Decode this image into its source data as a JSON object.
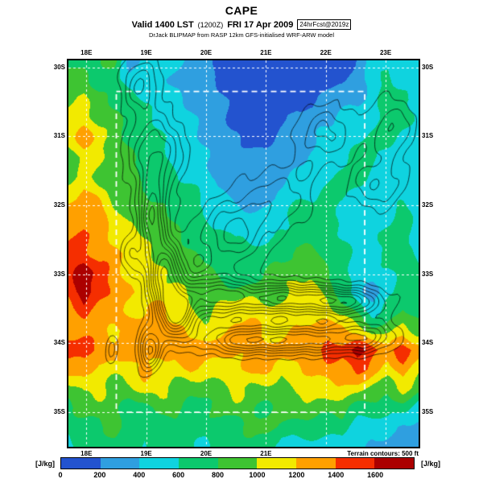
{
  "header": {
    "title": "CAPE",
    "valid": "Valid 1400 LST",
    "zulu": "(1200Z)",
    "date": "FRI 17 Apr 2009",
    "badge": "24hrFcst@2019z",
    "model": "DrJack BLIPMAP from RASP 12km GFS-initialised WRF-ARW model"
  },
  "map": {
    "lon_labels": [
      "18E",
      "19E",
      "20E",
      "21E",
      "22E",
      "23E"
    ],
    "lon_labels_bottom": [
      "18E",
      "19E",
      "20E",
      "21E"
    ],
    "lat_labels_left": [
      "30S",
      "31S",
      "32S",
      "33S",
      "34S",
      "35S"
    ],
    "lat_labels_right": [
      "30S",
      "31S",
      "32S",
      "33S",
      "34S",
      "35S"
    ],
    "terrain_note": "Terrain contours: 500 ft"
  },
  "colorbar": {
    "units_left": "[J/kg]",
    "units_right": "[J/kg]",
    "ticks": [
      "0",
      "200",
      "400",
      "600",
      "800",
      "1000",
      "1200",
      "1400",
      "1600"
    ]
  },
  "chart_data": {
    "type": "heatmap",
    "subtype": "filled-contour-weather-map",
    "title": "CAPE",
    "subtitle": "Valid 1400 LST (1200Z) FRI 17 Apr 2009 [24hrFcst@2019z]",
    "source_line": "DrJack BLIPMAP from RASP 12km GFS-initialised WRF-ARW model",
    "units": "J/kg",
    "lon_range": [
      17.7,
      23.55
    ],
    "lat_range": [
      29.9,
      35.5
    ],
    "levels": [
      0,
      200,
      400,
      600,
      800,
      1000,
      1200,
      1400,
      1600
    ],
    "level_colors": [
      "#2353cf",
      "#2f9fe0",
      "#0fd3df",
      "#0cc96d",
      "#3ec432",
      "#f2ea00",
      "#ffa000",
      "#f52e00",
      "#ab0000"
    ],
    "graticule": {
      "lons": [
        18,
        19,
        20,
        21,
        22,
        23
      ],
      "lats": [
        30,
        31,
        32,
        33,
        34,
        35
      ]
    },
    "inner_domain_box": {
      "lon": [
        18.5,
        22.65
      ],
      "lat": [
        30.35,
        35.0
      ]
    },
    "grid_lon_count": 24,
    "grid_lat_count": 21,
    "cape_grid": [
      [
        700,
        700,
        700,
        900,
        300,
        500,
        500,
        500,
        300,
        300,
        100,
        100,
        100,
        100,
        100,
        100,
        100,
        100,
        100,
        300,
        500,
        500,
        500,
        500
      ],
      [
        900,
        900,
        700,
        700,
        500,
        500,
        500,
        300,
        300,
        300,
        100,
        100,
        100,
        100,
        100,
        100,
        100,
        100,
        100,
        300,
        500,
        700,
        500,
        500
      ],
      [
        900,
        1100,
        900,
        700,
        700,
        500,
        500,
        500,
        300,
        300,
        300,
        100,
        100,
        100,
        100,
        100,
        100,
        300,
        300,
        300,
        500,
        700,
        700,
        500
      ],
      [
        1100,
        1100,
        900,
        900,
        700,
        700,
        500,
        500,
        500,
        300,
        300,
        100,
        100,
        100,
        100,
        300,
        300,
        300,
        500,
        500,
        500,
        700,
        700,
        500
      ],
      [
        1100,
        1300,
        1100,
        900,
        700,
        700,
        700,
        500,
        500,
        300,
        300,
        300,
        100,
        100,
        300,
        300,
        300,
        500,
        500,
        500,
        700,
        700,
        500,
        500
      ],
      [
        900,
        1100,
        1100,
        900,
        900,
        700,
        700,
        500,
        500,
        500,
        300,
        300,
        300,
        300,
        300,
        300,
        500,
        500,
        500,
        700,
        700,
        500,
        500,
        500
      ],
      [
        900,
        1100,
        900,
        900,
        900,
        700,
        700,
        700,
        500,
        500,
        300,
        300,
        300,
        300,
        300,
        500,
        500,
        500,
        700,
        700,
        500,
        500,
        500,
        500
      ],
      [
        1100,
        1300,
        1100,
        900,
        900,
        900,
        700,
        700,
        700,
        500,
        500,
        300,
        300,
        300,
        500,
        500,
        500,
        700,
        700,
        500,
        500,
        500,
        500,
        500
      ],
      [
        1300,
        1300,
        1300,
        1100,
        900,
        900,
        900,
        700,
        700,
        500,
        500,
        500,
        500,
        500,
        500,
        700,
        700,
        700,
        500,
        500,
        500,
        500,
        700,
        500
      ],
      [
        1300,
        1500,
        1300,
        1100,
        1100,
        900,
        900,
        900,
        700,
        700,
        700,
        500,
        500,
        500,
        700,
        700,
        700,
        700,
        500,
        500,
        500,
        700,
        700,
        500
      ],
      [
        1500,
        1500,
        1300,
        1300,
        1100,
        1100,
        900,
        900,
        900,
        700,
        700,
        700,
        700,
        700,
        700,
        900,
        900,
        700,
        700,
        500,
        500,
        700,
        700,
        500
      ],
      [
        1500,
        1700,
        1500,
        1300,
        1100,
        1100,
        1100,
        900,
        900,
        900,
        700,
        700,
        700,
        900,
        900,
        900,
        900,
        900,
        700,
        500,
        500,
        500,
        700,
        700
      ],
      [
        1500,
        1700,
        1500,
        1300,
        1300,
        1100,
        1100,
        1100,
        900,
        900,
        900,
        900,
        900,
        900,
        900,
        1100,
        1100,
        900,
        700,
        500,
        300,
        500,
        700,
        700
      ],
      [
        1300,
        1500,
        1300,
        1300,
        1100,
        1100,
        1300,
        1100,
        1100,
        900,
        1100,
        1100,
        1100,
        1100,
        1100,
        1100,
        1100,
        1100,
        900,
        700,
        500,
        700,
        900,
        700
      ],
      [
        1300,
        1300,
        1300,
        1100,
        1300,
        1300,
        1300,
        1300,
        1100,
        1100,
        1100,
        1300,
        1300,
        1100,
        1100,
        1300,
        1300,
        1300,
        1300,
        1100,
        900,
        900,
        1100,
        900
      ],
      [
        1500,
        1500,
        1300,
        1300,
        1300,
        1300,
        1300,
        1300,
        1300,
        1300,
        1300,
        1300,
        1300,
        1300,
        1300,
        1300,
        1300,
        1500,
        1500,
        1700,
        1500,
        1300,
        1500,
        1300
      ],
      [
        1300,
        1300,
        1100,
        1100,
        1100,
        1300,
        1100,
        1100,
        1300,
        1100,
        1100,
        1100,
        1300,
        1300,
        1100,
        1100,
        1300,
        1300,
        1300,
        1500,
        1300,
        1100,
        1300,
        1100
      ],
      [
        900,
        1100,
        1100,
        900,
        900,
        1100,
        1100,
        900,
        900,
        900,
        900,
        1100,
        900,
        900,
        900,
        1100,
        1100,
        1100,
        1100,
        1100,
        900,
        900,
        1100,
        900
      ],
      [
        700,
        900,
        900,
        900,
        700,
        700,
        900,
        900,
        700,
        700,
        900,
        900,
        900,
        700,
        900,
        900,
        900,
        900,
        900,
        700,
        700,
        700,
        700,
        500
      ],
      [
        700,
        700,
        700,
        900,
        700,
        700,
        700,
        700,
        700,
        700,
        700,
        700,
        900,
        900,
        700,
        700,
        700,
        700,
        700,
        500,
        500,
        500,
        300,
        300
      ],
      [
        500,
        700,
        700,
        700,
        700,
        500,
        700,
        700,
        700,
        500,
        700,
        700,
        700,
        700,
        500,
        500,
        500,
        500,
        500,
        500,
        300,
        300,
        300,
        300
      ]
    ],
    "terrain_contours": {
      "interval_ft": 500,
      "label": "Terrain contours: 500 ft",
      "levels_ft": [
        500,
        1000,
        1500,
        2000,
        2500,
        3000,
        3500,
        4000,
        4500
      ],
      "ridges": [
        [
          18.9,
          30.25,
          2000,
          0.3,
          0.4
        ],
        [
          19.15,
          31.25,
          2600,
          0.45,
          0.55
        ],
        [
          19.1,
          32.15,
          3400,
          0.22,
          0.5
        ],
        [
          19.3,
          32.95,
          4200,
          0.28,
          0.45
        ],
        [
          19.5,
          33.55,
          4800,
          0.32,
          0.38
        ],
        [
          19.05,
          34.1,
          3000,
          0.18,
          0.3
        ],
        [
          18.42,
          34.1,
          1100,
          0.1,
          0.25
        ],
        [
          18.75,
          32.7,
          1400,
          0.18,
          0.28
        ],
        [
          20.15,
          33.3,
          3200,
          0.5,
          0.3
        ],
        [
          20.45,
          32.4,
          2200,
          0.55,
          0.45
        ],
        [
          21.25,
          33.35,
          3800,
          0.85,
          0.22
        ],
        [
          22.35,
          33.4,
          3300,
          0.6,
          0.2
        ],
        [
          20.65,
          33.95,
          3200,
          0.7,
          0.2
        ],
        [
          21.7,
          33.95,
          3000,
          0.7,
          0.2
        ],
        [
          22.65,
          33.9,
          2600,
          0.5,
          0.22
        ],
        [
          22.0,
          30.95,
          1600,
          0.5,
          0.4
        ],
        [
          22.85,
          31.7,
          1500,
          0.45,
          0.35
        ],
        [
          21.2,
          31.9,
          1300,
          0.6,
          0.45
        ],
        [
          23.1,
          30.9,
          1500,
          0.4,
          0.45
        ]
      ]
    }
  }
}
